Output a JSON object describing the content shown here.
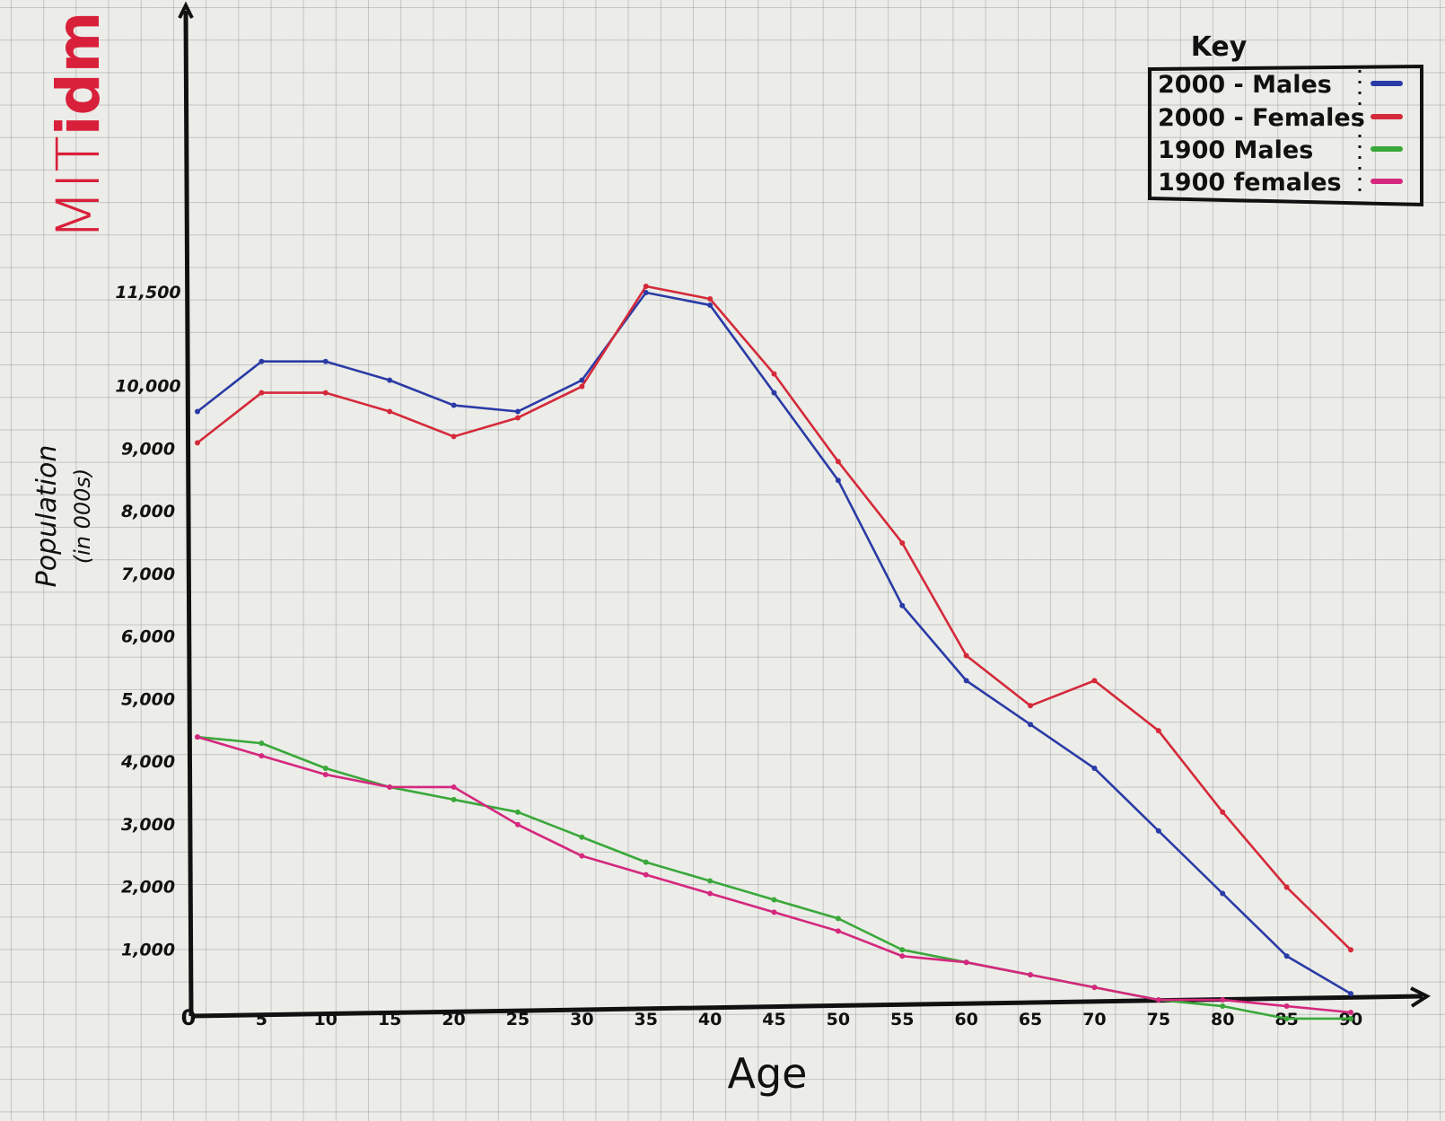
{
  "logo": {
    "part1": "MIT",
    "part2": "idm"
  },
  "chart_data": {
    "type": "line",
    "xlabel": "Age",
    "ylabel": "Population",
    "ylabel_sub": "(in 000s)",
    "x": [
      0,
      5,
      10,
      15,
      20,
      25,
      30,
      35,
      40,
      45,
      50,
      55,
      60,
      65,
      70,
      75,
      80,
      85,
      90
    ],
    "x_tick_labels": [
      "0",
      "5",
      "10",
      "15",
      "20",
      "25",
      "30",
      "35",
      "40",
      "45",
      "50",
      "55",
      "60",
      "65",
      "70",
      "75",
      "80",
      "85",
      "90"
    ],
    "y_ticks": [
      1000,
      2000,
      3000,
      4000,
      5000,
      6000,
      7000,
      8000,
      9000,
      10000,
      11500
    ],
    "y_tick_labels": [
      "1,000",
      "2,000",
      "3,000",
      "4,000",
      "5,000",
      "6,000",
      "7,000",
      "8,000",
      "9,000",
      "10,000",
      "11,500"
    ],
    "xlim": [
      0,
      92
    ],
    "ylim": [
      0,
      14000
    ],
    "legend": {
      "title": "Key",
      "placement": "top-right"
    },
    "series": [
      {
        "name": "2000 - Males",
        "color": "#2a3ba6",
        "values": [
          9600,
          10400,
          10400,
          10100,
          9700,
          9600,
          10100,
          11500,
          11300,
          9900,
          8500,
          6500,
          5300,
          4600,
          3900,
          2900,
          1900,
          900,
          300
        ]
      },
      {
        "name": "2000 - Females",
        "color": "#d42a3a",
        "values": [
          9100,
          9900,
          9900,
          9600,
          9200,
          9500,
          10000,
          11600,
          11400,
          10200,
          8800,
          7500,
          5700,
          4900,
          5300,
          4500,
          3200,
          2000,
          1000
        ]
      },
      {
        "name": "1900 Males",
        "color": "#3aa83a",
        "values": [
          4400,
          4300,
          3900,
          3600,
          3400,
          3200,
          2800,
          2400,
          2100,
          1800,
          1500,
          1000,
          800,
          600,
          400,
          200,
          100,
          -100,
          -100
        ]
      },
      {
        "name": "1900 females",
        "color": "#d4287e",
        "values": [
          4400,
          4100,
          3800,
          3600,
          3600,
          3000,
          2500,
          2200,
          1900,
          1600,
          1300,
          900,
          800,
          600,
          400,
          200,
          200,
          100,
          0
        ]
      }
    ]
  }
}
